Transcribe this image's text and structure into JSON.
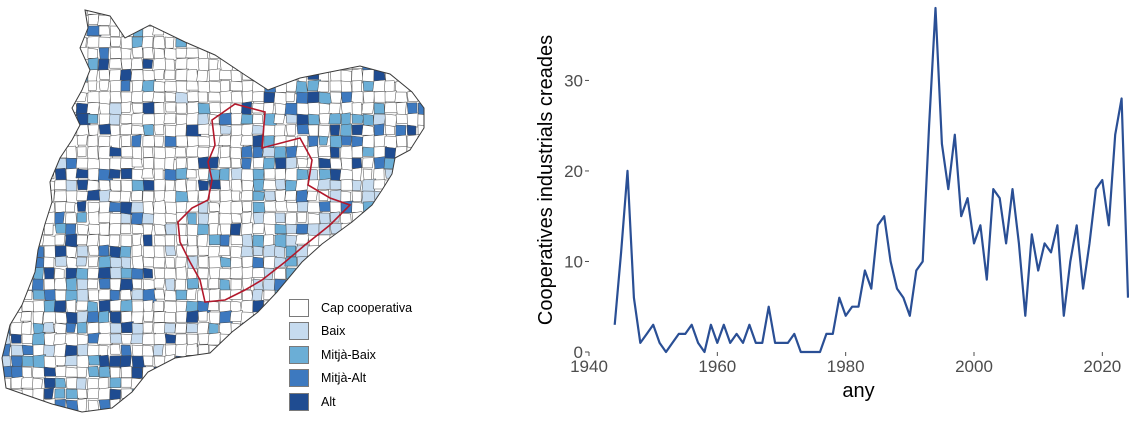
{
  "map": {
    "legend": [
      {
        "label": "Cap cooperativa",
        "color": "#ffffff"
      },
      {
        "label": "Baix",
        "color": "#c6dbef"
      },
      {
        "label": "Mitjà-Baix",
        "color": "#6baed6"
      },
      {
        "label": "Mitjà-Alt",
        "color": "#3d79bf"
      },
      {
        "label": "Alt",
        "color": "#1f4c91"
      }
    ],
    "outline_color": "#b2182b"
  },
  "chart_data": {
    "type": "line",
    "xlabel": "any",
    "ylabel": "Cooperatives industrials creades",
    "xlim": [
      1940,
      2024
    ],
    "ylim": [
      0,
      38
    ],
    "xticks": [
      1940,
      1960,
      1980,
      2000,
      2020
    ],
    "yticks": [
      0,
      10,
      20,
      30
    ],
    "grid": false,
    "line_color": "#2a4f95",
    "series": [
      {
        "x": [
          1944,
          1945,
          1946,
          1947,
          1948,
          1949,
          1950,
          1951,
          1952,
          1953,
          1954,
          1955,
          1956,
          1957,
          1958,
          1959,
          1960,
          1961,
          1962,
          1963,
          1964,
          1965,
          1966,
          1967,
          1968,
          1969,
          1970,
          1971,
          1972,
          1973,
          1974,
          1975,
          1976,
          1977,
          1978,
          1979,
          1980,
          1981,
          1982,
          1983,
          1984,
          1985,
          1986,
          1987,
          1988,
          1989,
          1990,
          1991,
          1992,
          1993,
          1994,
          1995,
          1996,
          1997,
          1998,
          1999,
          2000,
          2001,
          2002,
          2003,
          2004,
          2005,
          2006,
          2007,
          2008,
          2009,
          2010,
          2011,
          2012,
          2013,
          2014,
          2015,
          2016,
          2017,
          2018,
          2019,
          2020,
          2021,
          2022,
          2023,
          2024
        ],
        "y": [
          3,
          11,
          20,
          6,
          1,
          2,
          3,
          1,
          0,
          1,
          2,
          2,
          3,
          1,
          0,
          3,
          1,
          3,
          1,
          2,
          1,
          3,
          1,
          1,
          5,
          1,
          1,
          1,
          2,
          0,
          0,
          0,
          0,
          2,
          2,
          6,
          4,
          5,
          5,
          9,
          7,
          14,
          15,
          10,
          7,
          6,
          4,
          9,
          10,
          25,
          38,
          23,
          18,
          24,
          15,
          17,
          12,
          14,
          8,
          18,
          17,
          12,
          18,
          12,
          4,
          13,
          9,
          12,
          11,
          14,
          4,
          10,
          14,
          7,
          12,
          18,
          19,
          14,
          24,
          28,
          6
        ]
      }
    ]
  }
}
